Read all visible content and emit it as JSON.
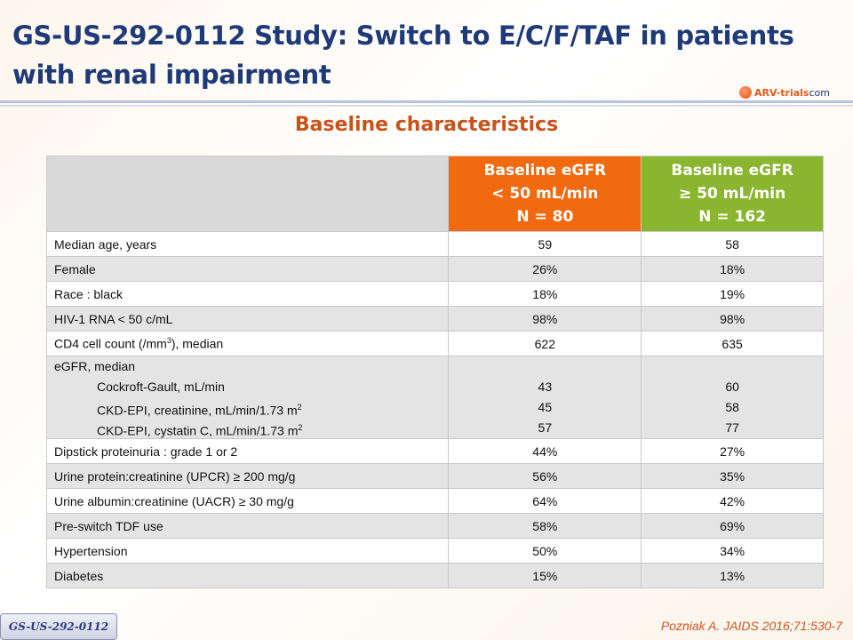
{
  "title": "GS-US-292-0112 Study: Switch to E/C/F/TAF in patients with renal impairment",
  "logo": {
    "brand": "ARV-trials",
    "domain": "com"
  },
  "subtitle": "Baseline characteristics",
  "table": {
    "col1": {
      "line1": "Baseline eGFR",
      "line2": "< 50 mL/min",
      "line3": "N = 80",
      "color": "#f26a0f"
    },
    "col2": {
      "line1": "Baseline eGFR",
      "line2": "≥ 50 mL/min",
      "line3": "N = 162",
      "color": "#8ab52e"
    },
    "rows": [
      {
        "label": "Median age, years",
        "v1": "59",
        "v2": "58"
      },
      {
        "label": "Female",
        "v1": "26%",
        "v2": "18%"
      },
      {
        "label": "Race : black",
        "v1": "18%",
        "v2": "19%"
      },
      {
        "label": "HIV-1 RNA < 50 c/mL",
        "v1": "98%",
        "v2": "98%"
      },
      {
        "label_pre": "CD4 cell count  (/mm",
        "label_sup": "3",
        "label_post": "), median",
        "v1": "622",
        "v2": "635"
      },
      {
        "label": "eGFR, median",
        "sub": [
          {
            "label": "Cockroft-Gault, mL/min",
            "v1": "43",
            "v2": "60"
          },
          {
            "label": "CKD-EPI, creatinine, mL/min/1.73 m",
            "sup": "2",
            "v1": "45",
            "v2": "58"
          },
          {
            "label": "CKD-EPI, cystatin C, mL/min/1.73 m",
            "sup": "2",
            "v1": "57",
            "v2": "77"
          }
        ]
      },
      {
        "label": "Dipstick proteinuria  : grade 1 or 2",
        "v1": "44%",
        "v2": "27%"
      },
      {
        "label": "Urine protein:creatinine  (UPCR) ≥ 200 mg/g",
        "v1": "56%",
        "v2": "35%"
      },
      {
        "label": "Urine albumin:creatinine  (UACR) ≥ 30 mg/g",
        "v1": "64%",
        "v2": "42%"
      },
      {
        "label": "Pre-switch TDF use",
        "v1": "58%",
        "v2": "69%"
      },
      {
        "label": "Hypertension",
        "v1": "50%",
        "v2": "34%"
      },
      {
        "label": "Diabetes",
        "v1": "15%",
        "v2": "13%"
      }
    ]
  },
  "footer": {
    "study_tag": "GS-US-292-0112",
    "citation": "Pozniak A. JAIDS 2016;71:530-7"
  }
}
